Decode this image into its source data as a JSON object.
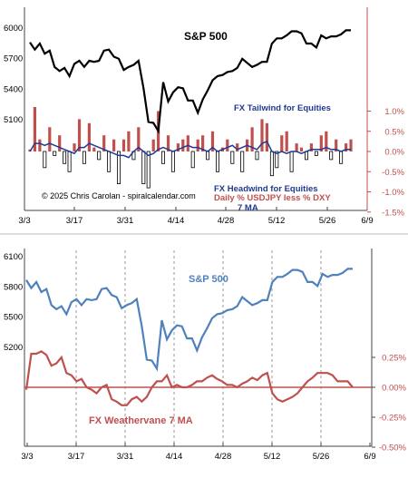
{
  "colors": {
    "spx_top": "#000000",
    "bar_pos": "#c0504d",
    "bar_neg_fill": "#ffffff",
    "bar_neg_stroke": "#000000",
    "ma_top": "#1f3a93",
    "right_axis_red": "#c0504d",
    "spx_bottom": "#4f81bd",
    "vane_bottom": "#c0504d",
    "grid_vert": "#7f7f7f",
    "axis": "#444444"
  },
  "chart_data": [
    {
      "type": "line+bar",
      "title": "S&P 500",
      "x": [
        "3/3",
        "3/4",
        "3/5",
        "3/6",
        "3/7",
        "3/10",
        "3/11",
        "3/12",
        "3/13",
        "3/14",
        "3/17",
        "3/18",
        "3/19",
        "3/20",
        "3/21",
        "3/24",
        "3/25",
        "3/26",
        "3/27",
        "3/28",
        "3/31",
        "4/1",
        "4/2",
        "4/3",
        "4/4",
        "4/7",
        "4/8",
        "4/9",
        "4/10",
        "4/11",
        "4/14",
        "4/15",
        "4/16",
        "4/17",
        "4/21",
        "4/22",
        "4/23",
        "4/24",
        "4/25",
        "4/28",
        "4/29",
        "4/30",
        "5/1",
        "5/2",
        "5/5",
        "5/6",
        "5/7",
        "5/8",
        "5/9",
        "5/12",
        "5/13",
        "5/14",
        "5/15",
        "5/16",
        "5/19",
        "5/20",
        "5/21",
        "5/22",
        "5/23",
        "5/27",
        "5/28",
        "5/29",
        "5/30",
        "6/2",
        "6/3",
        "6/4"
      ],
      "x_tick_labels": [
        "3/3",
        "3/17",
        "3/31",
        "4/14",
        "4/28",
        "5/12",
        "5/26",
        "6/9"
      ],
      "left_axis": {
        "ticks": [
          "6000",
          "5700",
          "5400",
          "5100"
        ]
      },
      "right_axis": {
        "ticks": [
          "1.0%",
          "0.5%",
          "0.0%",
          "-0.5%",
          "-1.0%",
          "-1.5%"
        ],
        "range": [
          -1.5,
          1.25
        ]
      },
      "series": [
        {
          "name": "S&P 500",
          "axis": "left",
          "values": [
            5850,
            5780,
            5840,
            5740,
            5770,
            5610,
            5570,
            5600,
            5520,
            5640,
            5670,
            5610,
            5670,
            5660,
            5670,
            5770,
            5780,
            5710,
            5690,
            5580,
            5610,
            5630,
            5670,
            5400,
            5070,
            5060,
            4980,
            5460,
            5270,
            5360,
            5410,
            5400,
            5280,
            5280,
            5160,
            5290,
            5380,
            5480,
            5520,
            5530,
            5560,
            5570,
            5600,
            5690,
            5650,
            5610,
            5630,
            5660,
            5660,
            5840,
            5890,
            5890,
            5920,
            5960,
            5960,
            5940,
            5840,
            5840,
            5800,
            5920,
            5890,
            5910,
            5910,
            5930,
            5970,
            5970
          ]
        },
        {
          "name": "Daily % USDJPY less % DXY",
          "axis": "right",
          "kind": "bar",
          "values": [
            0.05,
            1.1,
            0.3,
            -0.4,
            0.6,
            -0.1,
            0.4,
            -0.3,
            -0.5,
            0.2,
            0.8,
            -0.3,
            0.7,
            0.1,
            -0.2,
            0.4,
            -0.5,
            0.3,
            -0.8,
            0.3,
            0.5,
            -0.2,
            0.6,
            -0.8,
            -0.9,
            0.3,
            1.0,
            -0.3,
            0.4,
            -0.5,
            0.2,
            0.3,
            0.4,
            -0.4,
            0.3,
            0.4,
            -0.2,
            0.5,
            -0.5,
            0.1,
            0.3,
            -0.3,
            0.2,
            -0.5,
            0.3,
            0.6,
            -0.2,
            0.8,
            0.7,
            -0.6,
            -0.4,
            0.4,
            0.5,
            -0.5,
            0.2,
            0.1,
            -0.2,
            0.2,
            -0.1,
            0.4,
            0.5,
            -0.2,
            0.3,
            -0.3,
            0.2,
            0.3
          ]
        },
        {
          "name": "7 MA",
          "axis": "right",
          "kind": "line",
          "values": [
            0.0,
            0.2,
            0.2,
            0.15,
            0.2,
            0.15,
            0.1,
            0.05,
            0.0,
            -0.05,
            0.1,
            0.1,
            0.2,
            0.15,
            0.1,
            0.05,
            0.0,
            -0.05,
            -0.1,
            -0.1,
            -0.15,
            0.0,
            0.1,
            0.0,
            -0.1,
            -0.05,
            0.05,
            0.1,
            0.05,
            0.0,
            0.05,
            0.1,
            0.15,
            0.1,
            0.1,
            0.05,
            0.0,
            0.1,
            0.0,
            0.05,
            0.1,
            0.15,
            0.05,
            0.1,
            0.15,
            0.1,
            0.05,
            0.2,
            0.25,
            0.0,
            -0.05,
            0.0,
            -0.05,
            0.0,
            0.0,
            -0.05,
            0.0,
            0.05,
            0.05,
            0.05,
            0.1,
            0.05,
            0.05,
            0.0,
            0.05,
            0.05
          ]
        }
      ],
      "annotations": {
        "fx_tailwind": "FX Tailwind for Equities",
        "fx_headwind": "FX Headwind for Equities",
        "bar_desc": "Daily % USDJPY less % DXY",
        "ma_label": "7 MA",
        "copyright": "© 2025 Chris Carolan - spiralcalendar.com"
      }
    },
    {
      "type": "line",
      "title": "S&P 500",
      "x_tick_labels": [
        "3/3",
        "3/17",
        "3/31",
        "4/14",
        "4/28",
        "5/12",
        "5/26",
        "6/9"
      ],
      "left_axis": {
        "ticks": [
          "6100",
          "5800",
          "5500",
          "5200"
        ]
      },
      "right_axis": {
        "ticks": [
          "0.25%",
          "0.00%",
          "-0.25%",
          "-0.50%"
        ],
        "range": [
          -0.5,
          0.5
        ]
      },
      "series": [
        {
          "name": "S&P 500",
          "axis": "left",
          "values": [
            5860,
            5780,
            5840,
            5740,
            5770,
            5610,
            5570,
            5600,
            5520,
            5640,
            5670,
            5610,
            5670,
            5660,
            5670,
            5770,
            5780,
            5710,
            5690,
            5580,
            5610,
            5630,
            5670,
            5400,
            5070,
            5060,
            4980,
            5460,
            5270,
            5360,
            5410,
            5400,
            5280,
            5280,
            5160,
            5290,
            5380,
            5480,
            5520,
            5530,
            5560,
            5570,
            5600,
            5690,
            5650,
            5610,
            5630,
            5660,
            5660,
            5840,
            5890,
            5890,
            5920,
            5960,
            5960,
            5940,
            5840,
            5840,
            5800,
            5920,
            5890,
            5910,
            5910,
            5930,
            5970,
            5970
          ]
        },
        {
          "name": "FX Weathervane 7 MA",
          "axis": "right",
          "values": [
            -0.02,
            0.28,
            0.28,
            0.3,
            0.27,
            0.18,
            0.2,
            0.25,
            0.12,
            0.1,
            0.05,
            0.07,
            0.0,
            -0.02,
            -0.05,
            0.0,
            0.02,
            -0.1,
            -0.12,
            -0.15,
            -0.15,
            -0.1,
            -0.08,
            -0.12,
            -0.08,
            0.0,
            0.05,
            0.05,
            0.1,
            0.0,
            0.02,
            0.0,
            0.0,
            0.02,
            0.05,
            0.05,
            0.08,
            0.1,
            0.07,
            0.05,
            0.02,
            0.02,
            0.0,
            0.03,
            0.05,
            0.08,
            0.06,
            0.1,
            0.12,
            -0.05,
            -0.1,
            -0.12,
            -0.1,
            -0.08,
            -0.05,
            0.0,
            0.05,
            0.08,
            0.12,
            0.12,
            0.12,
            0.1,
            0.05,
            0.05,
            0.05,
            0.0
          ]
        }
      ],
      "annotations": {
        "spx_label": "S&P 500",
        "vane_label": "FX Weathervane 7 MA"
      }
    }
  ]
}
